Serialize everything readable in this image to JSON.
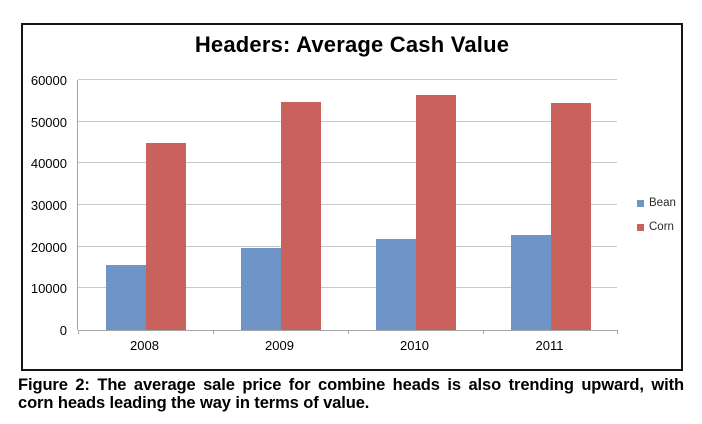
{
  "chart_data": {
    "type": "bar",
    "title": "Headers: Average Cash Value",
    "categories": [
      "2008",
      "2009",
      "2010",
      "2011"
    ],
    "series": [
      {
        "name": "Bean",
        "color": "#6e94c8",
        "values": [
          15500,
          19800,
          21800,
          22800
        ]
      },
      {
        "name": "Corn",
        "color": "#c9625d",
        "values": [
          44800,
          54800,
          56300,
          54600
        ]
      }
    ],
    "xlabel": "",
    "ylabel": "",
    "ylim": [
      0,
      60000
    ],
    "ytick_interval": 10000,
    "ytick_labels": [
      "0",
      "10000",
      "20000",
      "30000",
      "40000",
      "50000",
      "60000"
    ],
    "grid": true,
    "legend_position": "right",
    "gridline_color": "#c9c9c9",
    "axis_color": "#a6a6a6"
  },
  "caption": {
    "line1": "Figure 2: The average sale price for combine heads is also trending upward, with",
    "line2": "corn heads leading the way in terms of value."
  }
}
